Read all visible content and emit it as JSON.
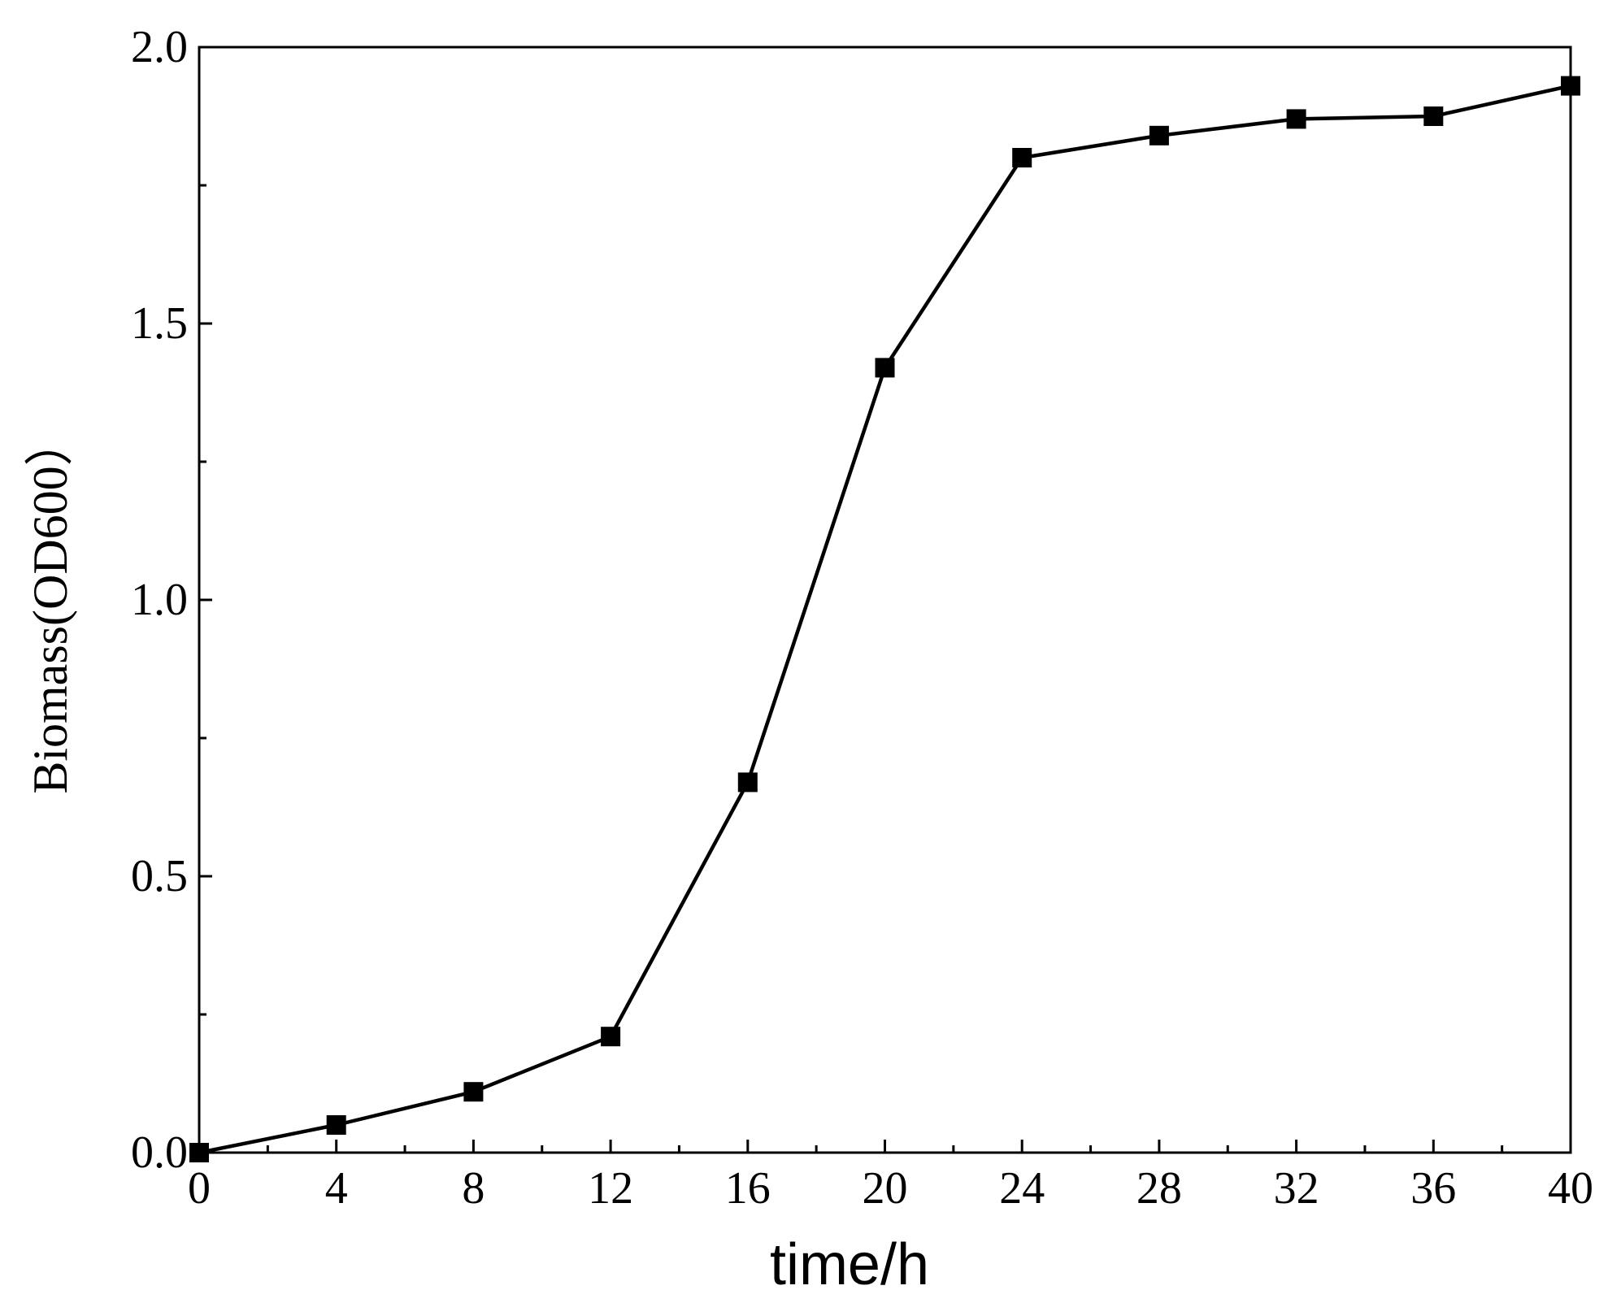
{
  "chart_data": {
    "type": "line",
    "title": "",
    "xlabel": "time/h",
    "ylabel": "Biomass(OD600）",
    "xlim": [
      0,
      40
    ],
    "ylim": [
      0,
      2.0
    ],
    "xticks": [
      0,
      4,
      8,
      12,
      16,
      20,
      24,
      28,
      32,
      36,
      40
    ],
    "xtick_labels": [
      "0",
      "4",
      "8",
      "12",
      "16",
      "20",
      "24",
      "28",
      "32",
      "36",
      "40"
    ],
    "yticks": [
      0,
      0.5,
      1.0,
      1.5,
      2.0
    ],
    "ytick_labels": [
      "0.0",
      "0.5",
      "1.0",
      "1.5",
      "2.0"
    ],
    "grid": false,
    "legend": "none",
    "series": [
      {
        "marker": "square",
        "color": "#000000",
        "x": [
          0,
          4,
          8,
          12,
          16,
          20,
          24,
          28,
          32,
          36,
          40
        ],
        "y": [
          0.0,
          0.05,
          0.11,
          0.21,
          0.67,
          1.42,
          1.8,
          1.84,
          1.87,
          1.875,
          1.93
        ]
      }
    ]
  }
}
